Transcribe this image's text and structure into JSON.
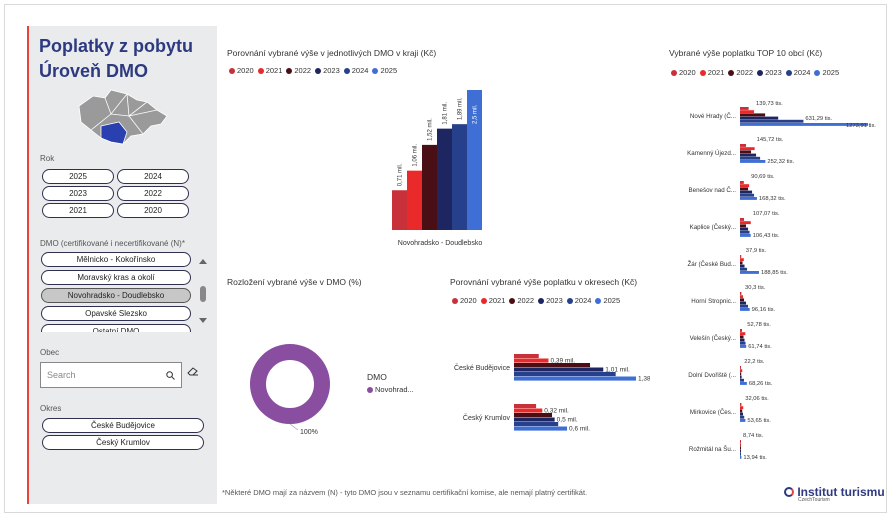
{
  "sidebar": {
    "title_line1": "Poplatky z pobytu",
    "title_line2": "Úroveň DMO",
    "rok_label": "Rok",
    "years": [
      "2025",
      "2024",
      "2023",
      "2022",
      "2021",
      "2020"
    ],
    "dmo_label": "DMO (certifikované i necertifikované (N)*",
    "dmo_items": [
      "Mělnicko - Kokořínsko",
      "Moravský kras a okolí",
      "Novohradsko - Doudlebsko",
      "Opavské Slezsko",
      "Ostatní DMO"
    ],
    "dmo_selected": "Novohradsko - Doudlebsko",
    "obec_label": "Obec",
    "search_placeholder": "Search",
    "okres_label": "Okres",
    "okres_items": [
      "České Budějovice",
      "Český Krumlov"
    ]
  },
  "colors": {
    "y2020": "#c8313a",
    "y2021": "#ea2a2a",
    "y2022": "#4a0f14",
    "y2023": "#1d2660",
    "y2024": "#27408b",
    "y2025": "#3f6fd4",
    "donut": "#8a4ea0",
    "title": "#2d3a80",
    "accent": "#e8423f"
  },
  "legend_years": [
    "2020",
    "2021",
    "2022",
    "2023",
    "2024",
    "2025"
  ],
  "chart1": {
    "title": "Porovnání vybrané výše v jednotlivých DMO v kraji (Kč)",
    "chart_data": {
      "type": "bar",
      "categories": [
        "Novohradsko - Doudlebsko"
      ],
      "series": [
        {
          "name": "2020",
          "values": [
            0.71
          ]
        },
        {
          "name": "2021",
          "values": [
            1.06
          ]
        },
        {
          "name": "2022",
          "values": [
            1.52
          ]
        },
        {
          "name": "2023",
          "values": [
            1.81
          ]
        },
        {
          "name": "2024",
          "values": [
            1.89
          ]
        },
        {
          "name": "2025",
          "values": [
            2.5
          ]
        }
      ],
      "data_labels": [
        "0,71 mil.",
        "1,06 mil.",
        "1,52 mil.",
        "1,81 mil.",
        "1,89 mil.",
        "2,5 mil."
      ]
    }
  },
  "chart2": {
    "title": "Rozložení vybrané výše v DMO (%)",
    "legend_title": "DMO",
    "legend_item": "Novohrad...",
    "chart_data": {
      "type": "pie",
      "categories": [
        "Novohradsko - Doudlebsko"
      ],
      "values": [
        100
      ],
      "data_labels": [
        "100%"
      ]
    }
  },
  "chart3": {
    "title": "Porovnání vybrané výše poplatku v okresech (Kč)",
    "chart_data": {
      "type": "bar",
      "categories": [
        "České Budějovice",
        "Český Krumlov"
      ],
      "series": [
        {
          "name": "2020",
          "values": [
            0.28,
            0.25
          ]
        },
        {
          "name": "2021",
          "values": [
            0.39,
            0.32
          ]
        },
        {
          "name": "2022",
          "values": [
            0.86,
            0.43
          ]
        },
        {
          "name": "2023",
          "values": [
            1.01,
            0.46
          ]
        },
        {
          "name": "2024",
          "values": [
            1.15,
            0.5
          ]
        },
        {
          "name": "2025",
          "values": [
            1.38,
            0.6
          ]
        }
      ],
      "data_labels": [
        [
          "0,39 mil.",
          "1,01 mil.",
          "1,38 mil."
        ],
        [
          "0,32 mil.",
          "0,5 mil.",
          "0,6 mil."
        ]
      ]
    }
  },
  "chart4": {
    "title": "Vybrané výše poplatku TOP 10 obcí (Kč)",
    "chart_data": {
      "type": "bar",
      "categories": [
        "Nové Hrady (Č...",
        "Kamenný Újezd...",
        "Benešov nad Č...",
        "Kaplice (Český...",
        "Žár (České Bud...",
        "Horní Stropnic...",
        "Velešín (Český...",
        "Dolní Dvořiště (...",
        "Mirkovice (Čes...",
        "Rožmitál na Šu..."
      ],
      "series": [
        {
          "name": "2020",
          "values": [
            86,
            60,
            38,
            40,
            12,
            14,
            20,
            6,
            14,
            2
          ]
        },
        {
          "name": "2021",
          "values": [
            139.73,
            145.72,
            90.69,
            107.07,
            37.9,
            30.3,
            52.78,
            22.2,
            32.06,
            8.74
          ]
        },
        {
          "name": "2022",
          "values": [
            250,
            110,
            80,
            60,
            25,
            40,
            35,
            12,
            22,
            4
          ]
        },
        {
          "name": "2023",
          "values": [
            380,
            160,
            120,
            80,
            45,
            60,
            45,
            16,
            30,
            6
          ]
        },
        {
          "name": "2024",
          "values": [
            631.29,
            200,
            140,
            95,
            70,
            80,
            55,
            40,
            42,
            9
          ]
        },
        {
          "name": "2025",
          "values": [
            1273.91,
            252.32,
            168.32,
            106.43,
            188.85,
            96.16,
            61.74,
            68.26,
            53.65,
            13.94
          ]
        }
      ],
      "data_labels": [
        [
          "139,73 tis.",
          "631,29 tis.",
          "1273,91 tis."
        ],
        [
          "145,72 tis.",
          "252,32 tis."
        ],
        [
          "90,69 tis.",
          "168,32 tis."
        ],
        [
          "107,07 tis.",
          "106,43 tis."
        ],
        [
          "37,9 tis.",
          "188,85 tis."
        ],
        [
          "30,3 tis.",
          "96,16 tis."
        ],
        [
          "52,78 tis.",
          "61,74 tis."
        ],
        [
          "22,2 tis.",
          "68,26 tis."
        ],
        [
          "32,06 tis.",
          "53,65 tis."
        ],
        [
          "8,74 tis.",
          "13,94 tis."
        ]
      ]
    }
  },
  "footnote": "*Některé DMO mají za názvem (N) - tyto DMO jsou v seznamu certifikační komise, ale nemají platný certifikát.",
  "logo": {
    "name": "Institut turismu",
    "sub": "CzechTourism"
  }
}
